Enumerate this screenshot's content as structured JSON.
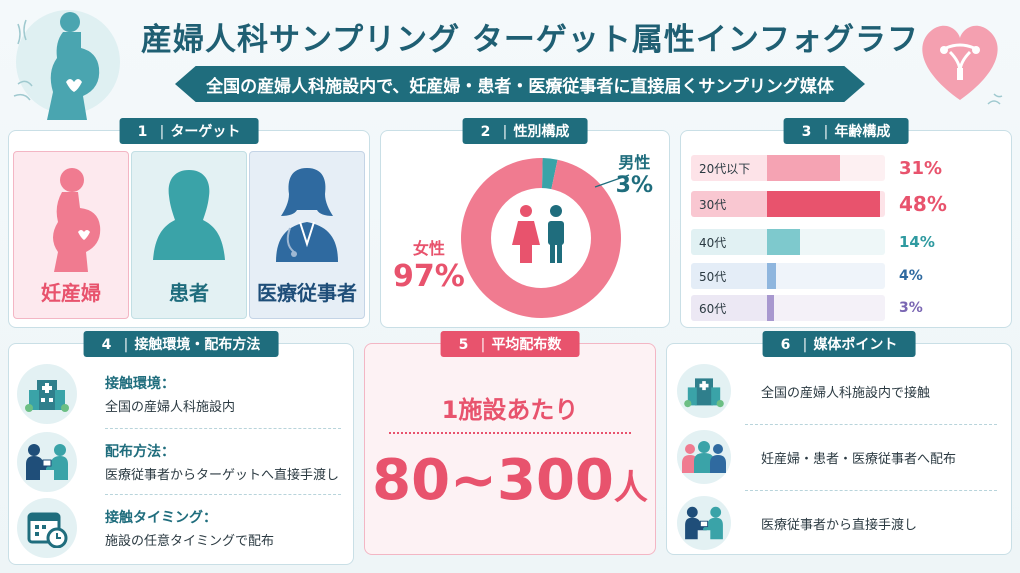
{
  "header": {
    "title": "産婦人科サンプリング ターゲット属性インフォグラフィック",
    "subtitle": "全国の産婦人科施設内で、妊産婦・患者・医療従事者に直接届くサンプリング媒体"
  },
  "panel1": {
    "num": "1",
    "title": "ターゲット",
    "targets": [
      {
        "label": "妊産婦",
        "icon": "pregnant-woman-icon"
      },
      {
        "label": "患者",
        "icon": "patient-icon"
      },
      {
        "label": "医療従事者",
        "icon": "doctor-icon"
      }
    ]
  },
  "panel2": {
    "num": "2",
    "title": "性別構成",
    "female_label": "女性",
    "female_value": "97%",
    "male_label": "男性",
    "male_value": "3%",
    "chart_data": {
      "type": "pie",
      "categories": [
        "女性",
        "男性"
      ],
      "values": [
        97,
        3
      ],
      "colors": [
        "#f07b90",
        "#3aa3a8"
      ]
    }
  },
  "panel3": {
    "num": "3",
    "title": "年齢構成",
    "chart_data": {
      "type": "bar",
      "categories": [
        "20代以下",
        "30代",
        "40代",
        "50代",
        "60代"
      ],
      "values": [
        31,
        48,
        14,
        4,
        3
      ],
      "value_labels": [
        "31%",
        "48%",
        "14%",
        "4%",
        "3%"
      ],
      "xlim": [
        0,
        50
      ]
    }
  },
  "panel4": {
    "num": "4",
    "title": "接触環境・配布方法",
    "items": [
      {
        "title": "接触環境：",
        "desc": "全国の産婦人科施設内",
        "icon": "hospital-icon"
      },
      {
        "title": "配布方法：",
        "desc": "医療従事者からターゲットへ直接手渡し",
        "icon": "handover-icon"
      },
      {
        "title": "接触タイミング：",
        "desc": "施設の任意タイミングで配布",
        "icon": "calendar-clock-icon"
      }
    ]
  },
  "panel5": {
    "num": "5",
    "title": "平均配布数",
    "per_facility": "1施設あたり",
    "count": "80~300",
    "unit": "人"
  },
  "panel6": {
    "num": "6",
    "title": "媒体ポイント",
    "points": [
      {
        "text": "全国の産婦人科施設内で接触",
        "icon": "hospital-icon"
      },
      {
        "text": "妊産婦・患者・医療従事者へ配布",
        "icon": "group-icon"
      },
      {
        "text": "医療従事者から直接手渡し",
        "icon": "handover-icon"
      }
    ]
  }
}
